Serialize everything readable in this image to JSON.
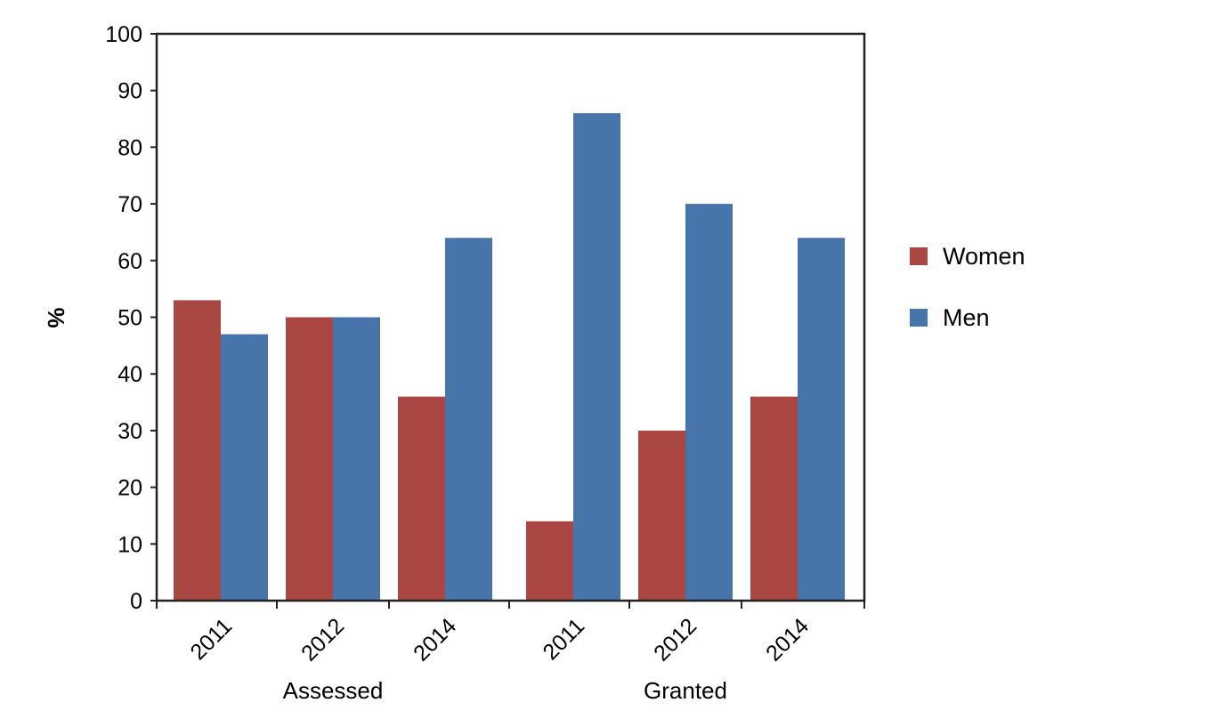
{
  "chart_data": {
    "type": "bar",
    "ylabel": "%",
    "ylim": [
      0,
      100
    ],
    "yticks": [
      0,
      10,
      20,
      30,
      40,
      50,
      60,
      70,
      80,
      90,
      100
    ],
    "grid": false,
    "legend_position": "right",
    "groups": [
      {
        "label": "Assessed",
        "categories": [
          "2011",
          "2012",
          "2014"
        ]
      },
      {
        "label": "Granted",
        "categories": [
          "2011",
          "2012",
          "2014"
        ]
      }
    ],
    "series": [
      {
        "name": "Women",
        "color": "#a94843",
        "values": [
          53,
          50,
          36,
          14,
          30,
          36
        ]
      },
      {
        "name": "Men",
        "color": "#4674ab",
        "values": [
          47,
          50,
          64,
          86,
          70,
          64
        ]
      }
    ]
  }
}
